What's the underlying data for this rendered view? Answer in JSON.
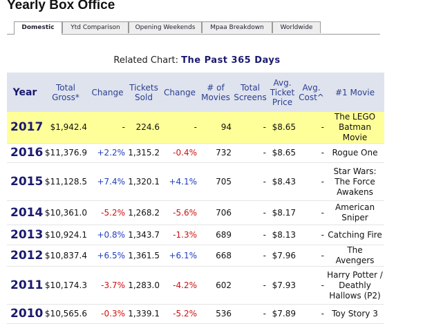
{
  "header": {
    "title": "Yearly Box Office"
  },
  "tabs": [
    "Domestic",
    "Ytd Comparison",
    "Opening Weekends",
    "Mpaa Breakdown",
    "Worldwide"
  ],
  "related": {
    "label": "Related Chart:",
    "link": "The Past 365 Days"
  },
  "table": {
    "headers": [
      "Year",
      "Total Gross*",
      "Change",
      "Tickets Sold",
      "Change",
      "# of Movies",
      "Total Screens",
      "Avg. Ticket Price",
      "Avg. Cost^",
      "#1 Movie"
    ],
    "rows": [
      [
        "2017",
        "$1,942.4",
        "-",
        "224.6",
        "-",
        "94",
        "-",
        "$8.65",
        "-",
        "The LEGO Batman Movie"
      ],
      [
        "2016",
        "$11,376.9",
        "+2.2%",
        "1,315.2",
        "-0.4%",
        "732",
        "-",
        "$8.65",
        "-",
        "Rogue One"
      ],
      [
        "2015",
        "$11,128.5",
        "+7.4%",
        "1,320.1",
        "+4.1%",
        "705",
        "-",
        "$8.43",
        "-",
        "Star Wars: The Force Awakens"
      ],
      [
        "2014",
        "$10,361.0",
        "-5.2%",
        "1,268.2",
        "-5.6%",
        "706",
        "-",
        "$8.17",
        "-",
        "American Sniper"
      ],
      [
        "2013",
        "$10,924.1",
        "+0.8%",
        "1,343.7",
        "-1.3%",
        "689",
        "-",
        "$8.13",
        "-",
        "Catching Fire"
      ],
      [
        "2012",
        "$10,837.4",
        "+6.5%",
        "1,361.5",
        "+6.1%",
        "668",
        "-",
        "$7.96",
        "-",
        "The Avengers"
      ],
      [
        "2011",
        "$10,174.3",
        "-3.7%",
        "1,283.0",
        "-4.2%",
        "602",
        "-",
        "$7.93",
        "-",
        "Harry Potter / Deathly Hallows (P2)"
      ],
      [
        "2010",
        "$10,565.6",
        "-0.3%",
        "1,339.1",
        "-5.2%",
        "536",
        "-",
        "$7.89",
        "-",
        "Toy Story 3"
      ]
    ]
  }
}
